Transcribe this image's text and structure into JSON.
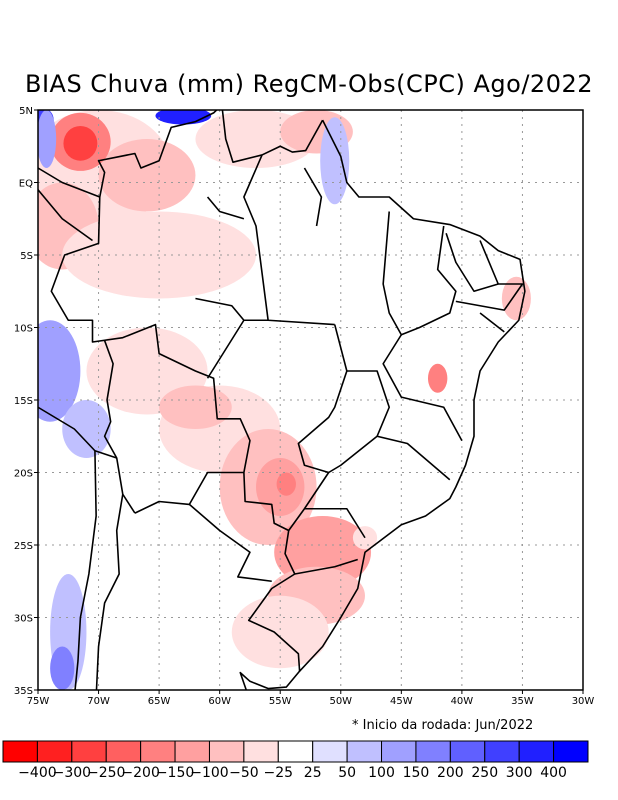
{
  "title": "BIAS Chuva (mm) RegCM-Obs(CPC) Ago/2022",
  "note": "* Inicio da rodada: Jun/2022",
  "chart_data": {
    "type": "heatmap",
    "title": "BIAS Chuva (mm) RegCM-Obs(CPC) Ago/2022",
    "xlim": [
      -75,
      -30
    ],
    "ylim": [
      -35,
      5
    ],
    "x_ticks": [
      "75W",
      "70W",
      "65W",
      "60W",
      "55W",
      "50W",
      "45W",
      "40W",
      "35W",
      "30W"
    ],
    "y_ticks": [
      "5N",
      "EQ",
      "5S",
      "10S",
      "15S",
      "20S",
      "25S",
      "30S",
      "35S"
    ],
    "grid": true,
    "colorbar": {
      "labels": [
        "-400",
        "-300",
        "-250",
        "-200",
        "-150",
        "-100",
        "-50",
        "-25",
        "25",
        "50",
        "100",
        "150",
        "200",
        "250",
        "300",
        "400"
      ],
      "colors": [
        "#ff0000",
        "#ff2020",
        "#ff4040",
        "#ff6060",
        "#ff8080",
        "#ffa0a0",
        "#ffc0c0",
        "#ffe0e0",
        "#ffffff",
        "#e0e0ff",
        "#c0c0ff",
        "#a0a0ff",
        "#8080ff",
        "#6060ff",
        "#4040ff",
        "#2020ff",
        "#0000ff"
      ]
    },
    "anomaly_regions": [
      {
        "lon": -70,
        "lat": 1,
        "rlon": 6,
        "rlat": 4,
        "level": 7
      },
      {
        "lon": -73,
        "lat": -3,
        "rlon": 3,
        "rlat": 3,
        "level": 6
      },
      {
        "lon": -66,
        "lat": 0.5,
        "rlon": 4,
        "rlat": 2.5,
        "level": 6
      },
      {
        "lon": -71.5,
        "lat": 2.8,
        "rlon": 2.5,
        "rlat": 2,
        "level": 4
      },
      {
        "lon": -71.5,
        "lat": 2.7,
        "rlon": 1.4,
        "rlat": 1.2,
        "level": 2
      },
      {
        "lon": -57,
        "lat": 3,
        "rlon": 5,
        "rlat": 2,
        "level": 7
      },
      {
        "lon": -52,
        "lat": 3.5,
        "rlon": 3,
        "rlat": 1.5,
        "level": 6
      },
      {
        "lon": -74.5,
        "lat": 4.3,
        "rlon": 0.8,
        "rlat": 0.8,
        "level": 14
      },
      {
        "lon": -74.3,
        "lat": 3,
        "rlon": 0.8,
        "rlat": 2,
        "level": 11
      },
      {
        "lon": -63,
        "lat": 4.6,
        "rlon": 2.3,
        "rlat": 0.6,
        "level": 15
      },
      {
        "lon": -50.5,
        "lat": 1.5,
        "rlon": 1.2,
        "rlat": 3,
        "level": 10
      },
      {
        "lon": -65,
        "lat": -5,
        "rlon": 8,
        "rlat": 3,
        "level": 7
      },
      {
        "lon": -74,
        "lat": -13,
        "rlon": 2.5,
        "rlat": 3.5,
        "level": 11
      },
      {
        "lon": -71,
        "lat": -17,
        "rlon": 2,
        "rlat": 2,
        "level": 10
      },
      {
        "lon": -72.5,
        "lat": -31,
        "rlon": 1.5,
        "rlat": 4,
        "level": 10
      },
      {
        "lon": -73,
        "lat": -33.5,
        "rlon": 1,
        "rlat": 1.5,
        "level": 12
      },
      {
        "lon": -66,
        "lat": -13,
        "rlon": 5,
        "rlat": 3,
        "level": 7
      },
      {
        "lon": -60,
        "lat": -17,
        "rlon": 5,
        "rlat": 3,
        "level": 7
      },
      {
        "lon": -62,
        "lat": -15.5,
        "rlon": 3,
        "rlat": 1.5,
        "level": 6
      },
      {
        "lon": -56,
        "lat": -21,
        "rlon": 4,
        "rlat": 4,
        "level": 6
      },
      {
        "lon": -55,
        "lat": -21,
        "rlon": 2,
        "rlat": 2,
        "level": 5
      },
      {
        "lon": -54.5,
        "lat": -20.8,
        "rlon": 0.8,
        "rlat": 0.8,
        "level": 4
      },
      {
        "lon": -51.5,
        "lat": -25.5,
        "rlon": 4,
        "rlat": 2.5,
        "level": 5
      },
      {
        "lon": -52,
        "lat": -28.5,
        "rlon": 4,
        "rlat": 2,
        "level": 6
      },
      {
        "lon": -55,
        "lat": -31,
        "rlon": 4,
        "rlat": 2.5,
        "level": 7
      },
      {
        "lon": -42,
        "lat": -13.5,
        "rlon": 0.8,
        "rlat": 1,
        "level": 4
      },
      {
        "lon": -35.5,
        "lat": -8,
        "rlon": 1.2,
        "rlat": 1.5,
        "level": 6
      },
      {
        "lon": -48,
        "lat": -24.5,
        "rlon": 1,
        "rlat": 0.8,
        "level": 7
      }
    ]
  }
}
